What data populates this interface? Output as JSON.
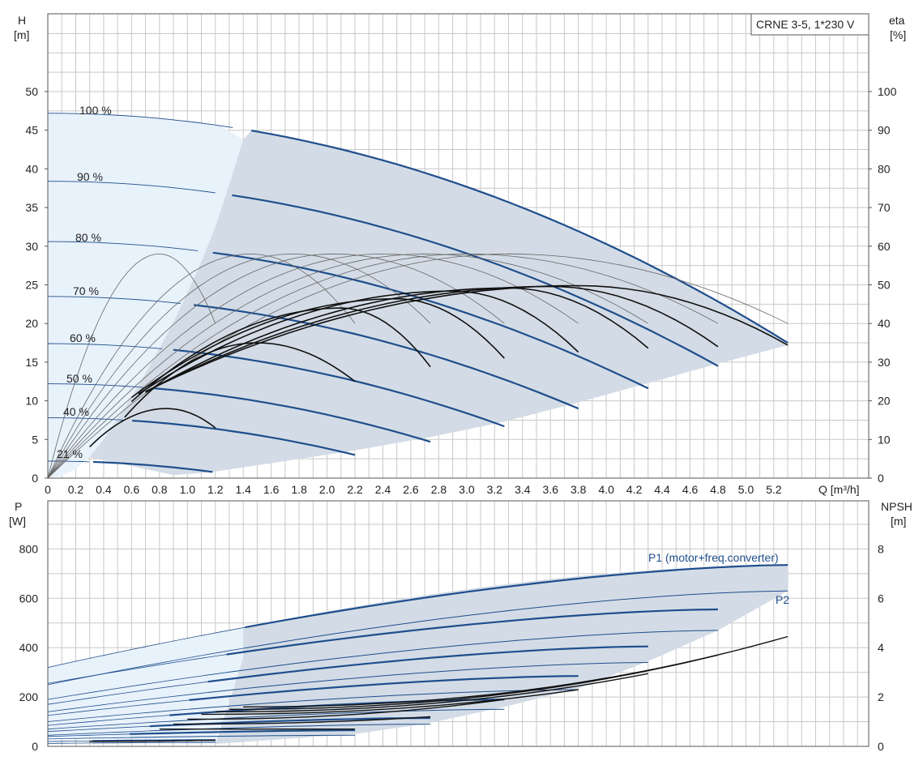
{
  "title_box": "CRNE 3-5, 1*230 V",
  "top_chart": {
    "y_left_label": [
      "H",
      "[m]"
    ],
    "y_right_label": [
      "eta",
      "[%]"
    ],
    "x_label": "Q [m³/h]",
    "y_ticks": [
      "0",
      "5",
      "10",
      "15",
      "20",
      "25",
      "30",
      "35",
      "40",
      "45",
      "50"
    ],
    "eta_ticks": [
      "0",
      "10",
      "20",
      "30",
      "40",
      "50",
      "60",
      "70",
      "80",
      "90",
      "100"
    ],
    "x_ticks": [
      "0",
      "0.2",
      "0.4",
      "0.6",
      "0.8",
      "1.0",
      "1.2",
      "1.4",
      "1.6",
      "1.8",
      "2.0",
      "2.2",
      "2.4",
      "2.6",
      "2.8",
      "3.0",
      "3.2",
      "3.4",
      "3.6",
      "3.8",
      "4.0",
      "4.2",
      "4.4",
      "4.6",
      "4.8",
      "5.0",
      "5.2"
    ],
    "speed_labels": [
      "100 %",
      "90 %",
      "80 %",
      "70 %",
      "60 %",
      "50 %",
      "40 %",
      "21 %"
    ]
  },
  "bottom_chart": {
    "y_left_label": [
      "P",
      "[W]"
    ],
    "y_right_label": [
      "NPSH",
      "[m]"
    ],
    "y_ticks": [
      "0",
      "200",
      "400",
      "600",
      "800"
    ],
    "npsh_ticks": [
      "0",
      "2",
      "4",
      "6",
      "8"
    ],
    "p1_label": "P1 (motor+freq.converter)",
    "p2_label": "P2"
  },
  "chart_data": [
    {
      "type": "line",
      "xlabel": "Q [m³/h]",
      "ylabel": "H [m]",
      "y2label": "eta [%]",
      "xlim": [
        0,
        5.3
      ],
      "ylim": [
        0,
        50
      ],
      "y2lim": [
        0,
        100
      ],
      "grid": true,
      "series": [
        {
          "name": "100 %",
          "x": [
            0,
            1.4,
            5.3
          ],
          "y": [
            47.2,
            43.8,
            17.5
          ]
        },
        {
          "name": "90 %",
          "x": [
            0,
            1.26,
            4.8
          ],
          "y": [
            38.4,
            35.8,
            14.5
          ]
        },
        {
          "name": "80 %",
          "x": [
            0,
            1.12,
            4.3
          ],
          "y": [
            30.6,
            28.6,
            11.6
          ]
        },
        {
          "name": "70 %",
          "x": [
            0,
            0.98,
            3.8
          ],
          "y": [
            23.5,
            21.8,
            9.0
          ]
        },
        {
          "name": "60 %",
          "x": [
            0,
            0.84,
            3.27
          ],
          "y": [
            17.4,
            16.0,
            6.7
          ]
        },
        {
          "name": "50 %",
          "x": [
            0,
            0.7,
            2.74
          ],
          "y": [
            12.2,
            11.2,
            4.7
          ]
        },
        {
          "name": "40 %",
          "x": [
            0,
            0.56,
            2.2
          ],
          "y": [
            7.8,
            7.2,
            3.0
          ]
        },
        {
          "name": "21 %",
          "x": [
            0,
            0.3,
            1.18
          ],
          "y": [
            2.2,
            2.0,
            0.8
          ]
        }
      ]
    },
    {
      "type": "line",
      "xlabel": "Q [m³/h]",
      "ylabel": "P [W]",
      "y2label": "NPSH [m]",
      "xlim": [
        0,
        5.3
      ],
      "ylim": [
        0,
        900
      ],
      "y2lim": [
        0,
        9
      ],
      "grid": true,
      "series": [
        {
          "name": "P1 (motor+freq.converter)",
          "x": [
            0,
            1.4,
            5.3
          ],
          "y": [
            320,
            480,
            735
          ]
        },
        {
          "name": "P2",
          "x": [
            0,
            1.4,
            5.3
          ],
          "y": [
            250,
            400,
            630
          ]
        },
        {
          "x": [
            1.2,
            5.3
          ],
          "y": [
            20,
            445
          ]
        }
      ]
    }
  ]
}
